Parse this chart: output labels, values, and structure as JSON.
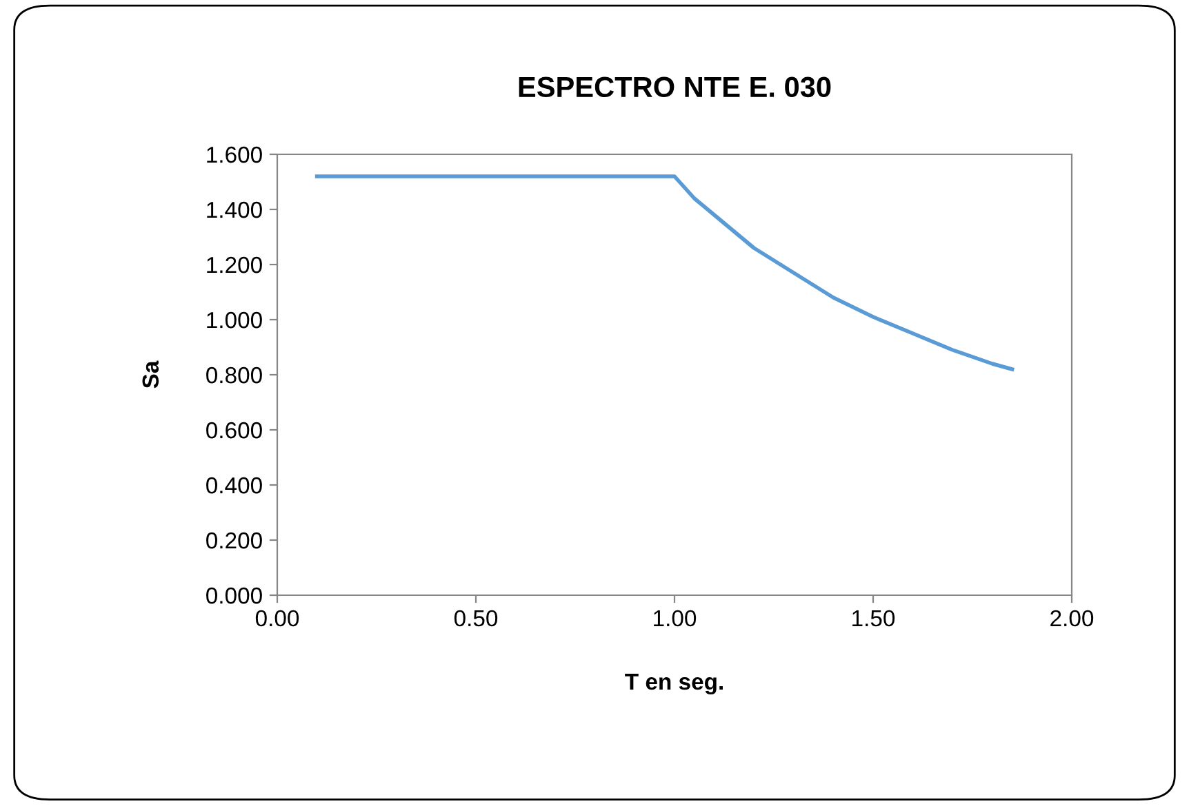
{
  "chart_data": {
    "type": "line",
    "title": "ESPECTRO NTE E. 030",
    "xlabel": "T en seg.",
    "ylabel": "Sa",
    "series": [
      {
        "color": "#5b9bd5",
        "x": [
          0.1,
          0.2,
          0.3,
          0.4,
          0.5,
          0.6,
          0.7,
          0.8,
          0.9,
          0.95,
          1.0,
          1.05,
          1.1,
          1.2,
          1.3,
          1.4,
          1.5,
          1.6,
          1.7,
          1.8,
          1.85
        ],
        "values": [
          1.52,
          1.52,
          1.52,
          1.52,
          1.52,
          1.52,
          1.52,
          1.52,
          1.52,
          1.52,
          1.52,
          1.44,
          1.38,
          1.26,
          1.17,
          1.08,
          1.01,
          0.95,
          0.89,
          0.84,
          0.82
        ]
      }
    ],
    "xlim": [
      0,
      2
    ],
    "ylim": [
      0,
      1.6
    ],
    "xticks": [
      {
        "value": 0,
        "label": "0.00"
      },
      {
        "value": 0.5,
        "label": "0.50"
      },
      {
        "value": 1,
        "label": "1.00"
      },
      {
        "value": 1.5,
        "label": "1.50"
      },
      {
        "value": 2,
        "label": "2.00"
      }
    ],
    "yticks": [
      {
        "value": 0,
        "label": "0.000"
      },
      {
        "value": 0.2,
        "label": "0.200"
      },
      {
        "value": 0.4,
        "label": "0.400"
      },
      {
        "value": 0.6,
        "label": "0.600"
      },
      {
        "value": 0.8,
        "label": "0.800"
      },
      {
        "value": 1.0,
        "label": "1.000"
      },
      {
        "value": 1.2,
        "label": "1.200"
      },
      {
        "value": 1.4,
        "label": "1.400"
      },
      {
        "value": 1.6,
        "label": "1.600"
      }
    ],
    "grid": false,
    "legend": false,
    "marker": "none",
    "line_style": "solid"
  }
}
